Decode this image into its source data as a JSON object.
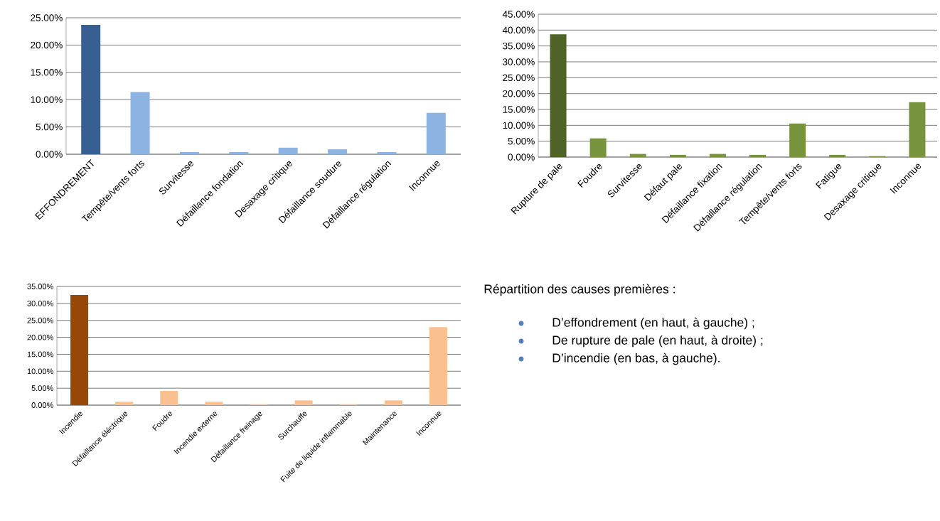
{
  "chart_data": [
    {
      "type": "bar",
      "categories": [
        "EFFONDREMENT",
        "Tempête/vents forts",
        "Survitesse",
        "Défaillance fondation",
        "Desaxage critique",
        "Défaillance soudure",
        "Défaillance régulation",
        "Inconnue"
      ],
      "values": [
        23.7,
        11.4,
        0.4,
        0.4,
        1.2,
        0.9,
        0.4,
        7.6
      ],
      "colors": [
        "#375f91",
        "#8db3e2",
        "#8db3e2",
        "#8db3e2",
        "#8db3e2",
        "#8db3e2",
        "#8db3e2",
        "#8db3e2"
      ],
      "ylim": [
        0,
        25
      ],
      "yticks": [
        {
          "value": 0,
          "label": "0.00%"
        },
        {
          "value": 5,
          "label": "5.00%"
        },
        {
          "value": 10,
          "label": "10.00%"
        },
        {
          "value": 15,
          "label": "15.00%"
        },
        {
          "value": 20,
          "label": "20.00%"
        },
        {
          "value": 25,
          "label": "25.00%"
        }
      ],
      "grid": "y"
    },
    {
      "type": "bar",
      "categories": [
        "Rupture de pale",
        "Foudre",
        "Survitesse",
        "Défaut pale",
        "Défaillance fixation",
        "Défaillance régulation",
        "Tempête/vents forts",
        "Fatigue",
        "Desaxage critique",
        "Inconnue"
      ],
      "values": [
        38.7,
        5.9,
        1.0,
        0.7,
        1.0,
        0.7,
        10.6,
        0.7,
        0.3,
        17.3
      ],
      "colors": [
        "#4f6228",
        "#77933c",
        "#77933c",
        "#77933c",
        "#77933c",
        "#77933c",
        "#77933c",
        "#77933c",
        "#77933c",
        "#77933c"
      ],
      "ylim": [
        0,
        45
      ],
      "yticks": [
        {
          "value": 0,
          "label": "0.00%"
        },
        {
          "value": 5,
          "label": "5.00%"
        },
        {
          "value": 10,
          "label": "10.00%"
        },
        {
          "value": 15,
          "label": "15.00%"
        },
        {
          "value": 20,
          "label": "20.00%"
        },
        {
          "value": 25,
          "label": "25.00%"
        },
        {
          "value": 30,
          "label": "30.00%"
        },
        {
          "value": 35,
          "label": "35.00%"
        },
        {
          "value": 40,
          "label": "40.00%"
        },
        {
          "value": 45,
          "label": "45.00%"
        }
      ],
      "grid": "y"
    },
    {
      "type": "bar",
      "categories": [
        "Incendie",
        "Défaillance éléctrique",
        "Foudre",
        "Incendie externe",
        "Défaillance freinage",
        "Surchauffe",
        "Fuite de liquide inflammable",
        "Maintenance",
        "Inconnue"
      ],
      "values": [
        32.5,
        1.0,
        4.2,
        1.0,
        0.3,
        1.4,
        0.3,
        1.4,
        23.0
      ],
      "colors": [
        "#974806",
        "#fac090",
        "#fac090",
        "#fac090",
        "#fac090",
        "#fac090",
        "#fac090",
        "#fac090",
        "#fac090"
      ],
      "ylim": [
        0,
        35
      ],
      "yticks": [
        {
          "value": 0,
          "label": "0.00%"
        },
        {
          "value": 5,
          "label": "5.00%"
        },
        {
          "value": 10,
          "label": "10.00%"
        },
        {
          "value": 15,
          "label": "15.00%"
        },
        {
          "value": 20,
          "label": "20.00%"
        },
        {
          "value": 25,
          "label": "25.00%"
        },
        {
          "value": 30,
          "label": "30.00%"
        },
        {
          "value": 35,
          "label": "35.00%"
        }
      ],
      "grid": "y"
    },
    {
      "type": "other",
      "title": "Répartition des causes premières :",
      "annotations": [
        "D’effondrement (en haut, à gauche) ;",
        "De rupture de pale (en haut, à droite) ;",
        "D’incendie (en bas, à gauche)."
      ]
    }
  ]
}
